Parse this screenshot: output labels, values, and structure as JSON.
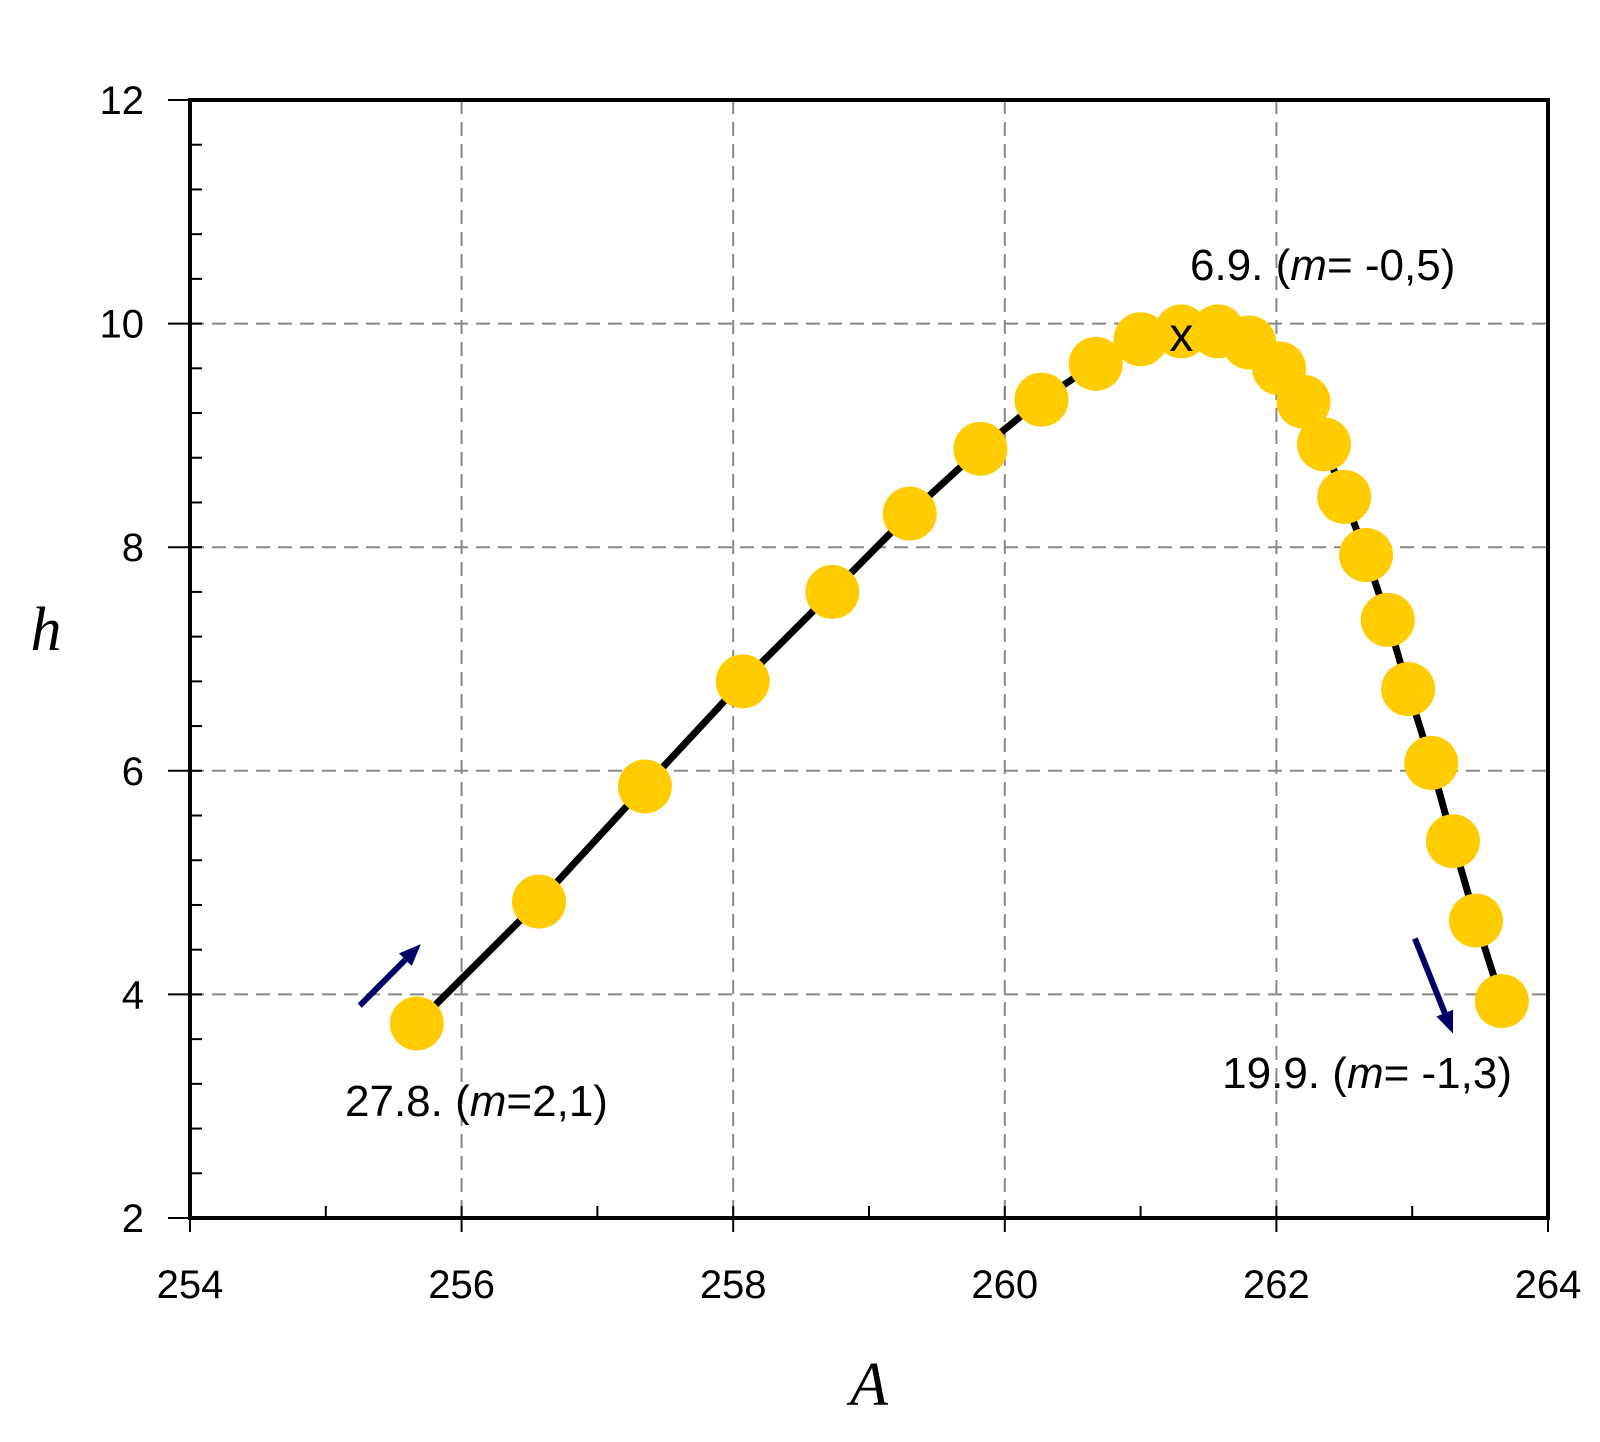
{
  "chart_data": {
    "type": "scatter",
    "title": "",
    "xlabel": "A",
    "ylabel": "h",
    "xlim": [
      254,
      264
    ],
    "ylim": [
      2,
      12
    ],
    "xticks": [
      "254",
      "256",
      "258",
      "260",
      "262",
      "264"
    ],
    "yticks": [
      "2",
      "4",
      "6",
      "8",
      "10",
      "12"
    ],
    "x_minor_step": 1,
    "y_minor_step": 0.4,
    "grid": true,
    "series": [
      {
        "name": "trajectory",
        "x": [
          255.67,
          256.57,
          257.35,
          258.07,
          258.73,
          259.3,
          259.82,
          260.27,
          260.67,
          261.0,
          261.3,
          261.57,
          261.8,
          262.02,
          262.2,
          262.35,
          262.5,
          262.66,
          262.82,
          262.97,
          263.14,
          263.3,
          263.47,
          263.66
        ],
        "y": [
          3.74,
          4.83,
          5.86,
          6.8,
          7.6,
          8.3,
          8.88,
          9.32,
          9.64,
          9.86,
          9.93,
          9.93,
          9.83,
          9.6,
          9.3,
          8.92,
          8.45,
          7.93,
          7.35,
          6.73,
          6.07,
          5.37,
          4.66,
          3.94
        ]
      }
    ],
    "peak_marker": {
      "label": "x",
      "x": 261.3,
      "y": 9.9
    },
    "annotations": [
      {
        "date": "27.8.",
        "m_label": "m",
        "m_value": "=2,1",
        "x": 255.7,
        "y": 3.74
      },
      {
        "date": "6.9.",
        "m_label": "m",
        "m_value": "= -0,5",
        "x": 261.3,
        "y": 9.93
      },
      {
        "date": "19.9.",
        "m_label": "m",
        "m_value": "= -1,3",
        "x": 263.66,
        "y": 3.94
      }
    ],
    "arrows": [
      {
        "name": "start-direction",
        "from": [
          255.25,
          3.9
        ],
        "to": [
          255.7,
          4.45
        ]
      },
      {
        "name": "end-direction",
        "from": [
          263.02,
          4.5
        ],
        "to": [
          263.3,
          3.65
        ]
      }
    ],
    "colors": {
      "marker": "#ffcc00",
      "line": "#000000",
      "arrow": "#000066",
      "grid": "#888888"
    }
  }
}
